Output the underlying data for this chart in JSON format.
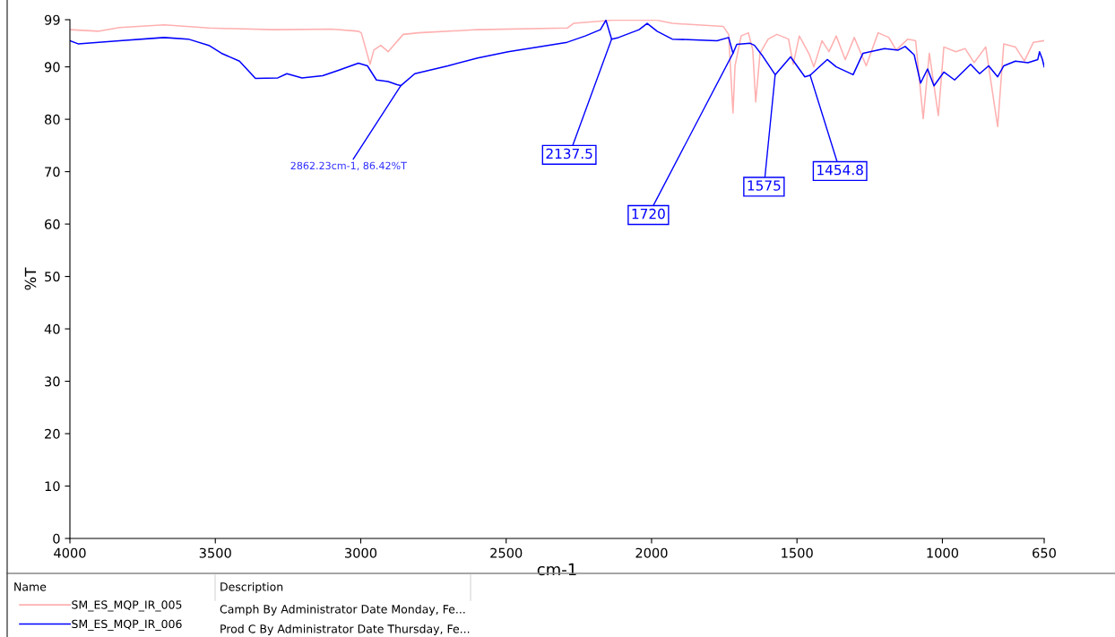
{
  "chart_data": {
    "type": "line",
    "xlabel": "cm-1",
    "ylabel": "%T",
    "xlim": [
      4000,
      650
    ],
    "ylim": [
      0,
      99
    ],
    "xticks": [
      4000,
      3500,
      3000,
      2500,
      2000,
      1500,
      1000,
      650
    ],
    "yticks": [
      0,
      10,
      20,
      30,
      40,
      50,
      60,
      70,
      80,
      90,
      99
    ],
    "grid": false,
    "legend": "bottom",
    "line_style": "solid",
    "marker": "none",
    "series": [
      {
        "name": "SM_ES_MQP_IR_005",
        "color": "#ffb0b0",
        "x": [
          4000,
          3900,
          3830,
          3676,
          3520,
          3300,
          3100,
          3008,
          2998,
          2968,
          2955,
          2931,
          2906,
          2854,
          2802,
          2598,
          2290,
          2268,
          2135,
          1981,
          1929,
          1753,
          1735,
          1720,
          1713,
          1692,
          1667,
          1652,
          1642,
          1627,
          1599,
          1569,
          1529,
          1513,
          1492,
          1457,
          1442,
          1414,
          1390,
          1365,
          1334,
          1303,
          1262,
          1221,
          1184,
          1159,
          1119,
          1092,
          1066,
          1045,
          1014,
          995,
          954,
          922,
          891,
          851,
          810,
          789,
          749,
          718,
          687,
          650
        ],
        "values": [
          97.1,
          96.8,
          97.5,
          98.0,
          97.4,
          97.1,
          97.2,
          96.8,
          96.5,
          90.5,
          93.2,
          94.1,
          92.9,
          96.2,
          96.5,
          97.1,
          97.4,
          98.3,
          98.9,
          98.9,
          98.3,
          97.7,
          96.2,
          81.2,
          90.2,
          95.9,
          96.5,
          93.2,
          83.3,
          92.6,
          95.3,
          96.2,
          95.3,
          90.5,
          95.9,
          92.3,
          90.0,
          95.0,
          92.9,
          95.9,
          91.4,
          95.6,
          90.2,
          96.5,
          95.6,
          93.2,
          95.3,
          95.0,
          80.1,
          92.6,
          80.7,
          93.8,
          92.9,
          93.5,
          90.8,
          93.8,
          78.6,
          94.4,
          93.8,
          91.1,
          94.7,
          95.0
        ]
      },
      {
        "name": "SM_ES_MQP_IR_006",
        "color": "#0000ff",
        "x": [
          4000,
          3972,
          3830,
          3676,
          3593,
          3522,
          3479,
          3417,
          3362,
          3285,
          3254,
          3202,
          3131,
          3079,
          3008,
          2977,
          2946,
          2906,
          2875,
          2862.23,
          2814,
          2700,
          2598,
          2493,
          2391,
          2290,
          2228,
          2176,
          2157,
          2137.5,
          2114,
          2043,
          2015,
          1981,
          1929,
          1775,
          1735,
          1720,
          1707,
          1661,
          1646,
          1621,
          1575,
          1522,
          1473,
          1454.8,
          1396,
          1365,
          1307,
          1273,
          1199,
          1152,
          1128,
          1097,
          1075,
          1051,
          1029,
          995,
          958,
          903,
          872,
          841,
          810,
          789,
          749,
          706,
          672,
          666,
          656,
          650
        ],
        "values": [
          95.0,
          94.4,
          95.0,
          95.6,
          95.3,
          94.1,
          92.6,
          91.1,
          87.8,
          87.9,
          88.7,
          87.9,
          88.3,
          89.3,
          90.7,
          90.2,
          87.5,
          87.2,
          86.6,
          86.42,
          88.7,
          90.2,
          91.7,
          92.9,
          93.8,
          94.7,
          95.9,
          97.1,
          98.9,
          95.3,
          95.6,
          97.1,
          98.3,
          96.8,
          95.3,
          95.0,
          95.6,
          92.6,
          94.3,
          94.5,
          94.1,
          92.3,
          88.5,
          91.9,
          88.1,
          88.4,
          91.4,
          90.0,
          88.5,
          92.6,
          93.5,
          93.2,
          93.9,
          92.3,
          86.9,
          89.6,
          86.4,
          89.0,
          87.5,
          90.5,
          88.7,
          90.2,
          88.1,
          90.2,
          91.1,
          90.8,
          91.4,
          92.9,
          91.4,
          90.0
        ]
      }
    ],
    "annotations": [
      {
        "text": "2862.23cm-1, 86.42%T",
        "x": 2862.23,
        "y": 86.42
      },
      {
        "text": "2137.5",
        "x": 2137.5,
        "y": 95.3
      },
      {
        "text": "1720",
        "x": 1720,
        "y": 92.6
      },
      {
        "text": "1575",
        "x": 1575,
        "y": 88.5
      },
      {
        "text": "1454.8",
        "x": 1454.8,
        "y": 88.4
      },
      "Name",
      "Description",
      "Camph By Administrator Date Monday, Fe...",
      "Prod C By Administrator Date Thursday, Fe..."
    ]
  }
}
